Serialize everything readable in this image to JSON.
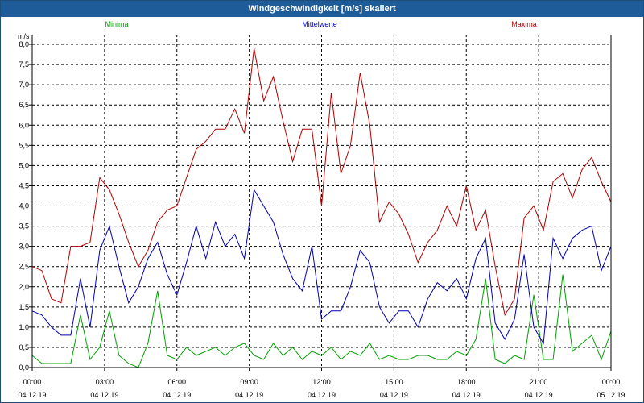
{
  "window": {
    "title": "Windgeschwindigkeit [m/s] skaliert"
  },
  "chart_data": {
    "type": "line",
    "ylabel": "m/s",
    "ylim": [
      0,
      8
    ],
    "yticks": [
      "0,0",
      "0,5",
      "1,0",
      "1,5",
      "2,0",
      "2,5",
      "3,0",
      "3,5",
      "4,0",
      "4,5",
      "5,0",
      "5,5",
      "6,0",
      "6,5",
      "7,0",
      "7,5",
      "8,0"
    ],
    "xlim_hours": [
      0,
      24
    ],
    "xticks": [
      {
        "time": "00:00",
        "date": "04.12.19"
      },
      {
        "time": "03:00",
        "date": "04.12.19"
      },
      {
        "time": "06:00",
        "date": "04.12.19"
      },
      {
        "time": "09:00",
        "date": "04.12.19"
      },
      {
        "time": "12:00",
        "date": "04.12.19"
      },
      {
        "time": "15:00",
        "date": "04.12.19"
      },
      {
        "time": "18:00",
        "date": "04.12.19"
      },
      {
        "time": "21:00",
        "date": "04.12.19"
      },
      {
        "time": "00:00",
        "date": "05.12.19"
      }
    ],
    "legend_position": "top",
    "grid": true,
    "series": [
      {
        "name": "Minima",
        "color": "#00a000",
        "x": [
          0,
          0.4,
          0.8,
          1.2,
          1.6,
          2.0,
          2.4,
          2.8,
          3.2,
          3.6,
          4.0,
          4.4,
          4.8,
          5.2,
          5.6,
          6.0,
          6.4,
          6.8,
          7.2,
          7.6,
          8.0,
          8.4,
          8.8,
          9.2,
          9.6,
          10.0,
          10.4,
          10.8,
          11.2,
          11.6,
          12.0,
          12.4,
          12.8,
          13.2,
          13.6,
          14.0,
          14.4,
          14.8,
          15.2,
          15.6,
          16.0,
          16.4,
          16.8,
          17.2,
          17.6,
          18.0,
          18.4,
          18.8,
          19.2,
          19.6,
          20.0,
          20.4,
          20.8,
          21.2,
          21.6,
          22.0,
          22.4,
          22.8,
          23.2,
          23.6,
          24.0
        ],
        "values": [
          0.3,
          0.1,
          0.1,
          0.1,
          0.1,
          1.3,
          0.2,
          0.5,
          1.4,
          0.3,
          0.1,
          0.0,
          0.6,
          1.9,
          0.3,
          0.2,
          0.5,
          0.3,
          0.4,
          0.5,
          0.3,
          0.5,
          0.6,
          0.3,
          0.2,
          0.6,
          0.3,
          0.5,
          0.2,
          0.4,
          0.3,
          0.5,
          0.2,
          0.4,
          0.3,
          0.6,
          0.2,
          0.3,
          0.2,
          0.2,
          0.3,
          0.3,
          0.2,
          0.2,
          0.4,
          0.3,
          0.7,
          2.2,
          0.2,
          0.1,
          0.3,
          0.2,
          1.8,
          0.2,
          0.2,
          2.3,
          0.4,
          0.6,
          0.8,
          0.2,
          0.9
        ]
      },
      {
        "name": "Mittelwerte",
        "color": "#0000b0",
        "x": [
          0,
          0.4,
          0.8,
          1.2,
          1.6,
          2.0,
          2.4,
          2.8,
          3.2,
          3.6,
          4.0,
          4.4,
          4.8,
          5.2,
          5.6,
          6.0,
          6.4,
          6.8,
          7.2,
          7.6,
          8.0,
          8.4,
          8.8,
          9.2,
          9.6,
          10.0,
          10.4,
          10.8,
          11.2,
          11.6,
          12.0,
          12.4,
          12.8,
          13.2,
          13.6,
          14.0,
          14.4,
          14.8,
          15.2,
          15.6,
          16.0,
          16.4,
          16.8,
          17.2,
          17.6,
          18.0,
          18.4,
          18.8,
          19.2,
          19.6,
          20.0,
          20.4,
          20.8,
          21.2,
          21.6,
          22.0,
          22.4,
          22.8,
          23.2,
          23.6,
          24.0
        ],
        "values": [
          1.4,
          1.3,
          1.0,
          0.8,
          0.8,
          2.2,
          1.0,
          2.9,
          3.5,
          2.5,
          1.6,
          2.0,
          2.7,
          3.1,
          2.3,
          1.8,
          2.6,
          3.5,
          2.7,
          3.6,
          3.0,
          3.3,
          2.7,
          4.4,
          4.0,
          3.6,
          2.8,
          2.2,
          1.9,
          3.0,
          1.2,
          1.4,
          1.4,
          2.0,
          2.9,
          2.6,
          1.5,
          1.1,
          1.4,
          1.4,
          1.0,
          1.7,
          2.1,
          1.9,
          2.2,
          1.7,
          2.7,
          3.2,
          1.1,
          0.7,
          1.2,
          2.8,
          1.0,
          0.6,
          3.2,
          2.7,
          3.2,
          3.4,
          3.5,
          2.4,
          3.0
        ]
      },
      {
        "name": "Maxima",
        "color": "#b00000",
        "x": [
          0,
          0.4,
          0.8,
          1.2,
          1.6,
          2.0,
          2.4,
          2.8,
          3.2,
          3.6,
          4.0,
          4.4,
          4.8,
          5.2,
          5.6,
          6.0,
          6.4,
          6.8,
          7.2,
          7.6,
          8.0,
          8.4,
          8.8,
          9.2,
          9.6,
          10.0,
          10.4,
          10.8,
          11.2,
          11.6,
          12.0,
          12.4,
          12.8,
          13.2,
          13.6,
          14.0,
          14.4,
          14.8,
          15.2,
          15.6,
          16.0,
          16.4,
          16.8,
          17.2,
          17.6,
          18.0,
          18.4,
          18.8,
          19.2,
          19.6,
          20.0,
          20.4,
          20.8,
          21.2,
          21.6,
          22.0,
          22.4,
          22.8,
          23.2,
          23.6,
          24.0
        ],
        "values": [
          2.5,
          2.4,
          1.7,
          1.6,
          3.0,
          3.0,
          3.1,
          4.7,
          4.4,
          3.8,
          3.1,
          2.5,
          2.9,
          3.6,
          3.9,
          4.0,
          4.7,
          5.4,
          5.6,
          5.9,
          5.9,
          6.4,
          5.8,
          7.9,
          6.6,
          7.2,
          6.1,
          5.1,
          5.9,
          5.9,
          4.0,
          6.8,
          4.8,
          5.5,
          7.3,
          6.0,
          3.6,
          4.1,
          3.8,
          3.3,
          2.6,
          3.1,
          3.4,
          4.0,
          3.5,
          4.5,
          3.4,
          3.9,
          2.5,
          1.3,
          1.7,
          3.7,
          4.0,
          3.4,
          4.6,
          4.8,
          4.2,
          4.9,
          5.2,
          4.6,
          4.1
        ]
      }
    ]
  }
}
